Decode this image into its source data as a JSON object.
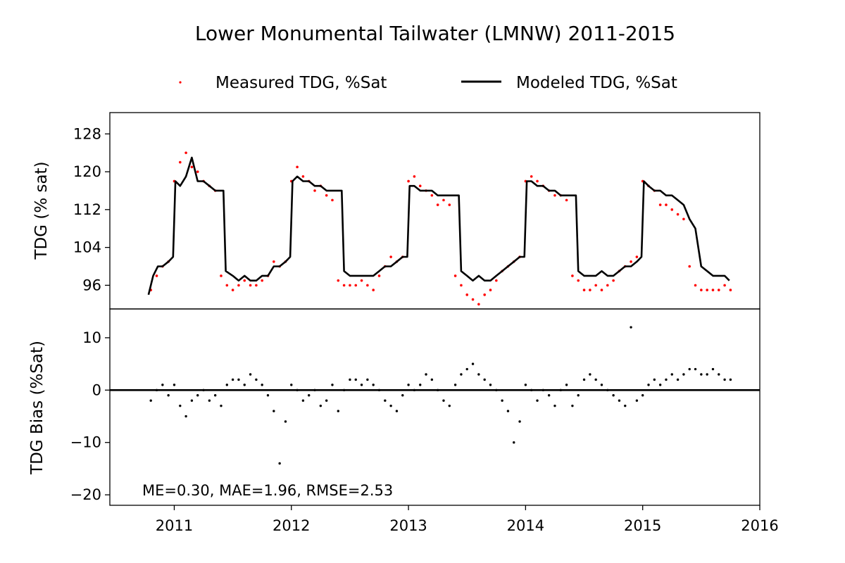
{
  "title": "Lower Monumental Tailwater (LMNW) 2011-2015",
  "legend": {
    "measured_label": "Measured TDG, %Sat",
    "modeled_label": "Modeled TDG, %Sat"
  },
  "colors": {
    "measured": "#ff0000",
    "modeled": "#000000",
    "bias": "#000000"
  },
  "stats_text": "ME=0.30, MAE=1.96, RMSE=2.53",
  "chart_data": [
    {
      "type": "scatter",
      "panel": "top",
      "ylabel": "TDG (% sat)",
      "xlim": [
        2010.45,
        2016.0
      ],
      "ylim": [
        91,
        132.5
      ],
      "yticks": [
        96,
        104,
        112,
        120,
        128
      ],
      "series": [
        {
          "name": "Measured TDG, %Sat",
          "style": "points",
          "x": [
            2010.8,
            2010.85,
            2010.9,
            2010.95,
            2011.0,
            2011.05,
            2011.1,
            2011.15,
            2011.2,
            2011.25,
            2011.3,
            2011.35,
            2011.4,
            2011.45,
            2011.5,
            2011.55,
            2011.6,
            2011.65,
            2011.7,
            2011.75,
            2011.8,
            2011.85,
            2011.9,
            2011.95,
            2012.0,
            2012.05,
            2012.1,
            2012.15,
            2012.2,
            2012.25,
            2012.3,
            2012.35,
            2012.4,
            2012.45,
            2012.5,
            2012.55,
            2012.6,
            2012.65,
            2012.7,
            2012.75,
            2012.8,
            2012.85,
            2012.9,
            2012.95,
            2013.0,
            2013.05,
            2013.1,
            2013.15,
            2013.2,
            2013.25,
            2013.3,
            2013.35,
            2013.4,
            2013.45,
            2013.5,
            2013.55,
            2013.6,
            2013.65,
            2013.7,
            2013.75,
            2013.8,
            2013.85,
            2013.9,
            2013.95,
            2014.0,
            2014.05,
            2014.1,
            2014.15,
            2014.2,
            2014.25,
            2014.3,
            2014.35,
            2014.4,
            2014.45,
            2014.5,
            2014.55,
            2014.6,
            2014.65,
            2014.7,
            2014.75,
            2014.8,
            2014.85,
            2014.9,
            2014.95,
            2015.0,
            2015.05,
            2015.1,
            2015.15,
            2015.2,
            2015.25,
            2015.3,
            2015.35,
            2015.4,
            2015.45,
            2015.5,
            2015.55,
            2015.6,
            2015.65,
            2015.7,
            2015.75
          ],
          "y": [
            95,
            98,
            100,
            101,
            118,
            122,
            124,
            121,
            120,
            118,
            117,
            116,
            98,
            96,
            95,
            96,
            97,
            96,
            96,
            97,
            98,
            101,
            100,
            101,
            118,
            121,
            119,
            118,
            116,
            117,
            115,
            114,
            97,
            96,
            96,
            96,
            97,
            96,
            95,
            98,
            100,
            102,
            101,
            102,
            118,
            119,
            117,
            116,
            115,
            113,
            114,
            113,
            98,
            96,
            94,
            93,
            92,
            94,
            95,
            97,
            99,
            100,
            101,
            102,
            118,
            119,
            118,
            117,
            116,
            115,
            115,
            114,
            98,
            97,
            95,
            95,
            96,
            95,
            96,
            97,
            99,
            100,
            101,
            102,
            118,
            117,
            116,
            113,
            113,
            112,
            111,
            110,
            100,
            96,
            95,
            95,
            95,
            95,
            96,
            95
          ]
        },
        {
          "name": "Modeled TDG, %Sat",
          "style": "line",
          "x": [
            2010.78,
            2010.82,
            2010.86,
            2010.9,
            2010.95,
            2010.99,
            2011.01,
            2011.05,
            2011.1,
            2011.15,
            2011.2,
            2011.25,
            2011.3,
            2011.35,
            2011.42,
            2011.44,
            2011.5,
            2011.55,
            2011.6,
            2011.65,
            2011.7,
            2011.75,
            2011.8,
            2011.85,
            2011.9,
            2011.95,
            2011.99,
            2012.01,
            2012.05,
            2012.1,
            2012.15,
            2012.2,
            2012.25,
            2012.3,
            2012.35,
            2012.43,
            2012.45,
            2012.5,
            2012.55,
            2012.6,
            2012.65,
            2012.7,
            2012.75,
            2012.8,
            2012.85,
            2012.9,
            2012.95,
            2012.99,
            2013.01,
            2013.05,
            2013.1,
            2013.15,
            2013.2,
            2013.25,
            2013.3,
            2013.35,
            2013.43,
            2013.45,
            2013.5,
            2013.55,
            2013.6,
            2013.65,
            2013.7,
            2013.75,
            2013.8,
            2013.85,
            2013.9,
            2013.95,
            2013.99,
            2014.01,
            2014.05,
            2014.1,
            2014.15,
            2014.2,
            2014.25,
            2014.3,
            2014.35,
            2014.43,
            2014.45,
            2014.5,
            2014.55,
            2014.6,
            2014.65,
            2014.7,
            2014.75,
            2014.8,
            2014.85,
            2014.9,
            2014.95,
            2014.99,
            2015.01,
            2015.05,
            2015.1,
            2015.15,
            2015.2,
            2015.25,
            2015.3,
            2015.35,
            2015.4,
            2015.45,
            2015.5,
            2015.55,
            2015.6,
            2015.65,
            2015.7,
            2015.74
          ],
          "y": [
            94,
            98,
            100,
            100,
            101,
            102,
            118,
            117,
            119,
            123,
            118,
            118,
            117,
            116,
            116,
            99,
            98,
            97,
            98,
            97,
            97,
            98,
            98,
            100,
            100,
            101,
            102,
            118,
            119,
            118,
            118,
            117,
            117,
            116,
            116,
            116,
            99,
            98,
            98,
            98,
            98,
            98,
            99,
            100,
            100,
            101,
            102,
            102,
            117,
            117,
            116,
            116,
            116,
            115,
            115,
            115,
            115,
            99,
            98,
            97,
            98,
            97,
            97,
            98,
            99,
            100,
            101,
            102,
            102,
            118,
            118,
            117,
            117,
            116,
            116,
            115,
            115,
            115,
            99,
            98,
            98,
            98,
            99,
            98,
            98,
            99,
            100,
            100,
            101,
            102,
            118,
            117,
            116,
            116,
            115,
            115,
            114,
            113,
            110,
            108,
            100,
            99,
            98,
            98,
            98,
            97
          ]
        }
      ]
    },
    {
      "type": "scatter",
      "panel": "bottom",
      "ylabel": "TDG Bias (%Sat)",
      "xlim": [
        2010.45,
        2016.0
      ],
      "ylim": [
        -22,
        15.5
      ],
      "yticks": [
        -20,
        -10,
        0,
        10
      ],
      "xticks": [
        2011,
        2012,
        2013,
        2014,
        2015,
        2016
      ],
      "reference_line_y": 0,
      "series": [
        {
          "name": "TDG Bias",
          "style": "points",
          "x": [
            2010.8,
            2010.85,
            2010.9,
            2010.95,
            2011.0,
            2011.05,
            2011.1,
            2011.15,
            2011.2,
            2011.25,
            2011.3,
            2011.35,
            2011.4,
            2011.45,
            2011.5,
            2011.55,
            2011.6,
            2011.65,
            2011.7,
            2011.75,
            2011.8,
            2011.85,
            2011.9,
            2011.95,
            2012.0,
            2012.05,
            2012.1,
            2012.15,
            2012.2,
            2012.25,
            2012.3,
            2012.35,
            2012.4,
            2012.45,
            2012.5,
            2012.55,
            2012.6,
            2012.65,
            2012.7,
            2012.75,
            2012.8,
            2012.85,
            2012.9,
            2012.95,
            2013.0,
            2013.05,
            2013.1,
            2013.15,
            2013.2,
            2013.25,
            2013.3,
            2013.35,
            2013.4,
            2013.45,
            2013.5,
            2013.55,
            2013.6,
            2013.65,
            2013.7,
            2013.75,
            2013.8,
            2013.85,
            2013.9,
            2013.95,
            2014.0,
            2014.05,
            2014.1,
            2014.15,
            2014.2,
            2014.25,
            2014.3,
            2014.35,
            2014.4,
            2014.45,
            2014.5,
            2014.55,
            2014.6,
            2014.65,
            2014.7,
            2014.75,
            2014.8,
            2014.85,
            2014.9,
            2014.95,
            2015.0,
            2015.05,
            2015.1,
            2015.15,
            2015.2,
            2015.25,
            2015.3,
            2015.35,
            2015.4,
            2015.45,
            2015.5,
            2015.55,
            2015.6,
            2015.65,
            2015.7,
            2015.75
          ],
          "y": [
            -2,
            0,
            1,
            -1,
            1,
            -3,
            -5,
            -2,
            -1,
            0,
            -2,
            -1,
            -3,
            1,
            2,
            2,
            1,
            3,
            2,
            1,
            -1,
            -4,
            -14,
            -6,
            1,
            0,
            -2,
            -1,
            0,
            -3,
            -2,
            1,
            -4,
            0,
            2,
            2,
            1,
            2,
            1,
            0,
            -2,
            -3,
            -4,
            -1,
            1,
            0,
            1,
            3,
            2,
            0,
            -2,
            -3,
            1,
            3,
            4,
            5,
            3,
            2,
            1,
            0,
            -2,
            -4,
            -10,
            -6,
            1,
            0,
            -2,
            0,
            -1,
            -3,
            0,
            1,
            -3,
            -1,
            2,
            3,
            2,
            1,
            0,
            -1,
            -2,
            -3,
            12,
            -2,
            -1,
            1,
            2,
            1,
            2,
            3,
            2,
            3,
            4,
            4,
            3,
            3,
            4,
            3,
            2,
            2
          ]
        }
      ]
    }
  ]
}
